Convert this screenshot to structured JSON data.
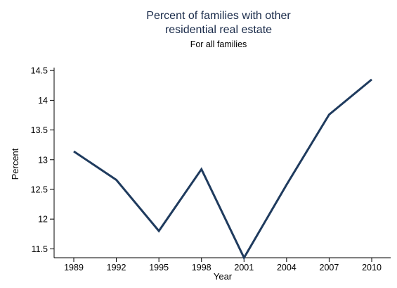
{
  "chart_data": {
    "type": "line",
    "title_lines": [
      "Percent of families with other",
      "residential real estate"
    ],
    "subtitle": "For all families",
    "xlabel": "Year",
    "ylabel": "Percent",
    "x": [
      "1989",
      "1992",
      "1995",
      "1998",
      "2001",
      "2004",
      "2007",
      "2010"
    ],
    "series": [
      {
        "values": [
          13.14,
          12.66,
          11.8,
          12.84,
          11.35,
          12.58,
          13.76,
          14.35
        ],
        "color": "#1f3b5e"
      }
    ],
    "ylim": [
      11.35,
      14.55
    ],
    "yticks": [
      "11.5",
      "12",
      "12.5",
      "13",
      "13.5",
      "14",
      "14.5"
    ],
    "grid": false,
    "legend": "none"
  }
}
